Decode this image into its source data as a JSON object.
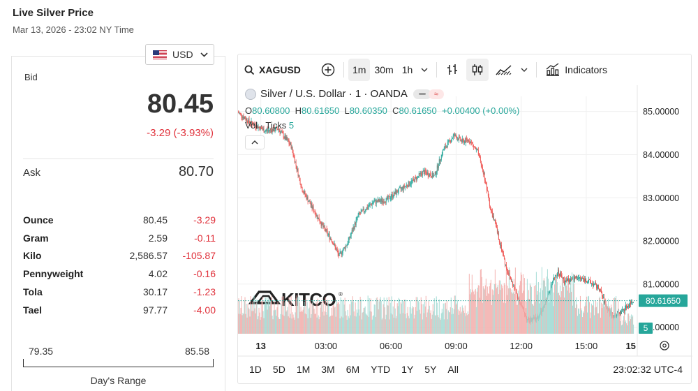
{
  "header": {
    "title": "Live Silver Price",
    "subtitle": "Mar 13, 2026 - 23:02 NY Time"
  },
  "currency": {
    "selected": "USD"
  },
  "quote": {
    "bid_label": "Bid",
    "bid": "80.45",
    "change": "-3.29 (-3.93%)",
    "ask_label": "Ask",
    "ask": "80.70"
  },
  "units": [
    {
      "name": "Ounce",
      "value": "80.45",
      "change": "-3.29"
    },
    {
      "name": "Gram",
      "value": "2.59",
      "change": "-0.11"
    },
    {
      "name": "Kilo",
      "value": "2,586.57",
      "change": "-105.87"
    },
    {
      "name": "Pennyweight",
      "value": "4.02",
      "change": "-0.16"
    },
    {
      "name": "Tola",
      "value": "30.17",
      "change": "-1.23"
    },
    {
      "name": "Tael",
      "value": "97.77",
      "change": "-4.00"
    }
  ],
  "day_range": {
    "low": "79.35",
    "high": "85.58",
    "caption": "Day's Range"
  },
  "chart_toolbar": {
    "symbol": "XAGUSD",
    "intervals": [
      "1m",
      "30m",
      "1h"
    ],
    "active_interval": "1m",
    "indicators_label": "Indicators"
  },
  "legend": {
    "symbol_desc": "Silver / U.S. Dollar · 1 · OANDA",
    "o_label": "O",
    "o": "80.60800",
    "h_label": "H",
    "h": "80.61650",
    "l_label": "L",
    "l": "80.60350",
    "c_label": "C",
    "c": "80.61650",
    "chg": "+0.00400 (+0.00%)",
    "vol_label": "Vol · Ticks",
    "vol_value": "5"
  },
  "watermark": "KITCO",
  "colors": {
    "up": "#26a69a",
    "down": "#ef5350",
    "negative_text": "#e0303a",
    "last_price_tag": "#26a69a"
  },
  "bottom_bar": {
    "ranges": [
      "1D",
      "5D",
      "1M",
      "3M",
      "6M",
      "YTD",
      "1Y",
      "5Y",
      "All"
    ],
    "clock": "23:02:32 UTC-4"
  },
  "chart_data": {
    "type": "candlestick",
    "ylim": [
      79.85,
      85.35
    ],
    "y_ticks": [
      "85.00000",
      "84.00000",
      "83.00000",
      "82.00000",
      "81.00000",
      "80.00000"
    ],
    "y_tick_values": [
      85,
      84,
      83,
      82,
      81,
      80
    ],
    "x_ticks": [
      "13",
      "03:00",
      "06:00",
      "09:00",
      "12:00",
      "15:00",
      "15"
    ],
    "x_tick_hours": [
      0,
      3,
      6,
      9,
      12,
      15,
      17.05
    ],
    "x_range_hours": [
      -1.05,
      17.35
    ],
    "last_price": 80.6165,
    "last_price_label": "80.61650",
    "last_volume": "5",
    "price_path": [
      [
        -1.05,
        84.98
      ],
      [
        -0.5,
        84.75
      ],
      [
        0.2,
        84.55
      ],
      [
        0.8,
        84.6
      ],
      [
        1.4,
        84.2
      ],
      [
        1.9,
        83.2
      ],
      [
        2.4,
        82.75
      ],
      [
        2.9,
        82.3
      ],
      [
        3.3,
        82.0
      ],
      [
        3.6,
        81.65
      ],
      [
        4.0,
        81.95
      ],
      [
        4.5,
        82.6
      ],
      [
        5.2,
        82.9
      ],
      [
        5.8,
        82.95
      ],
      [
        6.3,
        83.15
      ],
      [
        6.9,
        83.35
      ],
      [
        7.5,
        83.6
      ],
      [
        8.0,
        83.5
      ],
      [
        8.4,
        84.1
      ],
      [
        8.9,
        84.45
      ],
      [
        9.3,
        84.3
      ],
      [
        9.6,
        84.35
      ],
      [
        10.0,
        84.05
      ],
      [
        10.3,
        83.5
      ],
      [
        10.6,
        82.7
      ],
      [
        10.8,
        82.4
      ],
      [
        11.0,
        82.0
      ],
      [
        11.3,
        81.4
      ],
      [
        11.6,
        81.0
      ],
      [
        12.0,
        80.5
      ],
      [
        12.3,
        80.15
      ],
      [
        12.7,
        80.2
      ],
      [
        13.0,
        80.4
      ],
      [
        13.4,
        81.0
      ],
      [
        13.7,
        81.3
      ],
      [
        14.0,
        81.05
      ],
      [
        14.5,
        81.15
      ],
      [
        15.0,
        81.1
      ],
      [
        15.3,
        81.0
      ],
      [
        15.6,
        80.9
      ],
      [
        15.9,
        80.5
      ],
      [
        16.2,
        80.25
      ],
      [
        16.6,
        80.35
      ],
      [
        17.0,
        80.55
      ],
      [
        17.2,
        80.6165
      ]
    ]
  }
}
